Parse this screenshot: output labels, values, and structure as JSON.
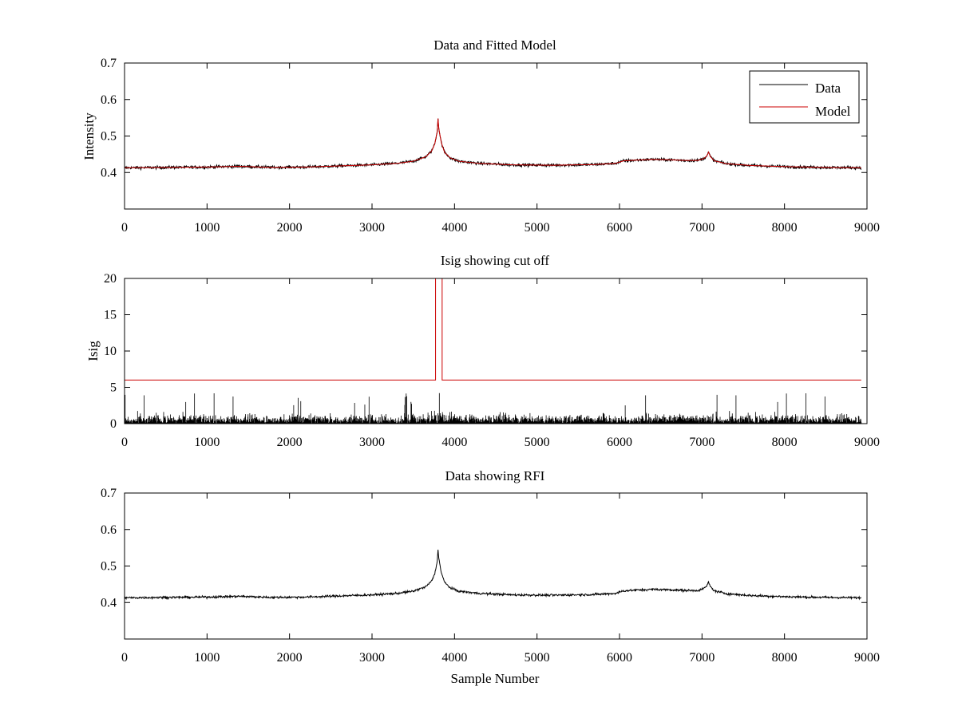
{
  "colors": {
    "data": "#000000",
    "model": "#cc0000",
    "background": "#ffffff",
    "axes": "#000000"
  },
  "chart_data": [
    {
      "id": "panel1",
      "type": "line",
      "title": "Data and Fitted Model",
      "xlabel": "",
      "ylabel": "Intensity",
      "xlim": [
        0,
        9000
      ],
      "ylim": [
        0.3,
        0.7
      ],
      "xticks": [
        0,
        1000,
        2000,
        3000,
        4000,
        5000,
        6000,
        7000,
        8000,
        9000
      ],
      "yticks": [
        0.4,
        0.5,
        0.6,
        0.7
      ],
      "xtick_labels": [
        "0",
        "1000",
        "2000",
        "3000",
        "4000",
        "5000",
        "6000",
        "7000",
        "8000",
        "9000"
      ],
      "ytick_labels": [
        "0.4",
        "0.5",
        "0.6",
        "0.7"
      ],
      "legend": {
        "position": "top-right",
        "entries": [
          "Data",
          "Model"
        ]
      },
      "series": [
        {
          "name": "Data",
          "color": "#000000",
          "kind": "noisy",
          "noise": 0.004,
          "x_range": [
            0,
            8930
          ],
          "x": [
            0,
            500,
            1000,
            1400,
            1800,
            2200,
            2600,
            3000,
            3300,
            3500,
            3650,
            3720,
            3760,
            3790,
            3800,
            3810,
            3840,
            3880,
            3950,
            4050,
            4300,
            4700,
            5200,
            5700,
            5950,
            6050,
            6200,
            6400,
            6600,
            6800,
            6950,
            7020,
            7060,
            7080,
            7100,
            7150,
            7300,
            7600,
            8000,
            8500,
            8930
          ],
          "values": [
            0.413,
            0.414,
            0.415,
            0.417,
            0.414,
            0.415,
            0.418,
            0.421,
            0.425,
            0.431,
            0.443,
            0.458,
            0.478,
            0.512,
            0.548,
            0.52,
            0.482,
            0.455,
            0.44,
            0.431,
            0.425,
            0.421,
            0.42,
            0.422,
            0.425,
            0.432,
            0.434,
            0.436,
            0.435,
            0.433,
            0.433,
            0.438,
            0.446,
            0.456,
            0.444,
            0.432,
            0.424,
            0.419,
            0.416,
            0.414,
            0.413
          ]
        },
        {
          "name": "Model",
          "color": "#cc0000",
          "kind": "smooth",
          "x": [
            0,
            500,
            1000,
            1400,
            1800,
            2200,
            2600,
            3000,
            3300,
            3500,
            3650,
            3720,
            3760,
            3790,
            3800,
            3810,
            3840,
            3880,
            3950,
            4050,
            4300,
            4700,
            5200,
            5700,
            5950,
            6050,
            6200,
            6400,
            6600,
            6800,
            6950,
            7020,
            7060,
            7080,
            7100,
            7150,
            7300,
            7600,
            8000,
            8500,
            8930
          ],
          "values": [
            0.413,
            0.414,
            0.415,
            0.417,
            0.414,
            0.415,
            0.418,
            0.421,
            0.425,
            0.431,
            0.443,
            0.458,
            0.478,
            0.512,
            0.548,
            0.52,
            0.482,
            0.455,
            0.44,
            0.431,
            0.425,
            0.421,
            0.42,
            0.422,
            0.425,
            0.432,
            0.434,
            0.436,
            0.435,
            0.433,
            0.433,
            0.438,
            0.446,
            0.456,
            0.444,
            0.432,
            0.424,
            0.419,
            0.416,
            0.414,
            0.413
          ]
        }
      ]
    },
    {
      "id": "panel2",
      "type": "line",
      "title": "Isig showing cut off",
      "xlabel": "",
      "ylabel": "Isig",
      "xlim": [
        0,
        9000
      ],
      "ylim": [
        0,
        20
      ],
      "xticks": [
        0,
        1000,
        2000,
        3000,
        4000,
        5000,
        6000,
        7000,
        8000,
        9000
      ],
      "yticks": [
        0,
        5,
        10,
        15,
        20
      ],
      "xtick_labels": [
        "0",
        "1000",
        "2000",
        "3000",
        "4000",
        "5000",
        "6000",
        "7000",
        "8000",
        "9000"
      ],
      "ytick_labels": [
        "0",
        "5",
        "10",
        "15",
        "20"
      ],
      "series": [
        {
          "name": "Isig",
          "color": "#000000",
          "kind": "bars",
          "x_range": [
            0,
            8930
          ],
          "typical_max": 2.5,
          "peak_max": 4.2
        },
        {
          "name": "Cut off",
          "color": "#cc0000",
          "kind": "step",
          "x": [
            0,
            3770,
            3770,
            3850,
            3850,
            8930
          ],
          "values": [
            6,
            6,
            20,
            20,
            6,
            6
          ]
        }
      ]
    },
    {
      "id": "panel3",
      "type": "line",
      "title": "Data showing RFI",
      "xlabel": "Sample Number",
      "ylabel": "",
      "xlim": [
        0,
        9000
      ],
      "ylim": [
        0.3,
        0.7
      ],
      "xticks": [
        0,
        1000,
        2000,
        3000,
        4000,
        5000,
        6000,
        7000,
        8000,
        9000
      ],
      "yticks": [
        0.4,
        0.5,
        0.6,
        0.7
      ],
      "xtick_labels": [
        "0",
        "1000",
        "2000",
        "3000",
        "4000",
        "5000",
        "6000",
        "7000",
        "8000",
        "9000"
      ],
      "ytick_labels": [
        "0.4",
        "0.5",
        "0.6",
        "0.7"
      ],
      "series": [
        {
          "name": "Data",
          "color": "#000000",
          "kind": "noisy",
          "noise": 0.003,
          "x_range": [
            0,
            8930
          ],
          "x": [
            0,
            500,
            1000,
            1400,
            1800,
            2200,
            2600,
            3000,
            3300,
            3500,
            3650,
            3720,
            3760,
            3790,
            3800,
            3810,
            3840,
            3880,
            3950,
            4050,
            4300,
            4700,
            5200,
            5700,
            5950,
            6050,
            6200,
            6400,
            6600,
            6800,
            6950,
            7020,
            7060,
            7080,
            7100,
            7150,
            7300,
            7600,
            8000,
            8500,
            8930
          ],
          "values": [
            0.413,
            0.414,
            0.415,
            0.417,
            0.414,
            0.415,
            0.418,
            0.421,
            0.425,
            0.431,
            0.443,
            0.458,
            0.478,
            0.512,
            0.548,
            0.52,
            0.482,
            0.455,
            0.44,
            0.431,
            0.425,
            0.421,
            0.42,
            0.422,
            0.425,
            0.432,
            0.434,
            0.436,
            0.435,
            0.433,
            0.433,
            0.438,
            0.446,
            0.456,
            0.444,
            0.432,
            0.424,
            0.419,
            0.416,
            0.414,
            0.413
          ]
        }
      ]
    }
  ]
}
